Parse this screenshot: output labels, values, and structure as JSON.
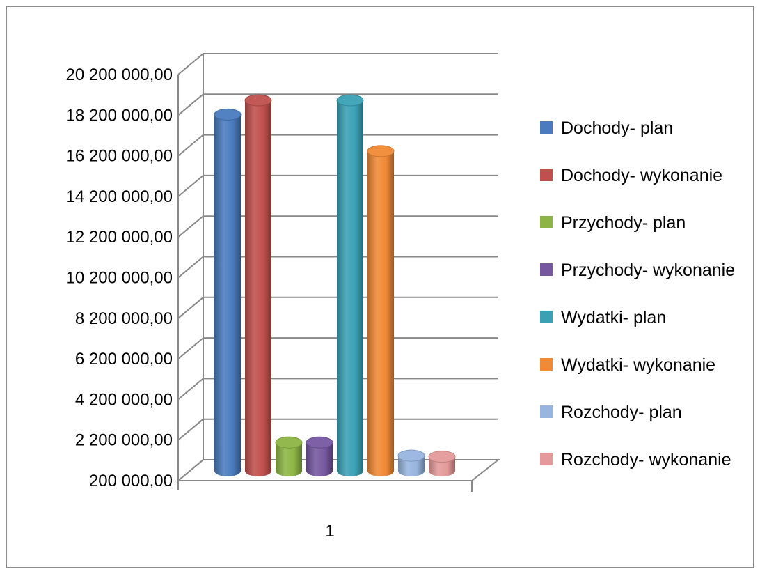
{
  "chart_data": {
    "type": "bar",
    "categories": [
      "1"
    ],
    "ylim": [
      200000,
      20200000
    ],
    "yticks": [
      "200 000,00",
      "2 200 000,00",
      "4 200 000,00",
      "6 200 000,00",
      "8 200 000,00",
      "10 200 000,00",
      "12 200 000,00",
      "14 200 000,00",
      "16 200 000,00",
      "18 200 000,00",
      "20 200 000,00"
    ],
    "ytick_values": [
      200000,
      2200000,
      4200000,
      6200000,
      8200000,
      10200000,
      12200000,
      14200000,
      16200000,
      18200000,
      20200000
    ],
    "grid": true,
    "legend_position": "right",
    "series": [
      {
        "name": "Dochody- plan",
        "values": [
          17750000
        ],
        "color": "#4a7bbf"
      },
      {
        "name": "Dochody- wykonanie",
        "values": [
          18450000
        ],
        "color": "#c0504d"
      },
      {
        "name": "Przychody- plan",
        "values": [
          1600000
        ],
        "color": "#8db545"
      },
      {
        "name": "Przychody- wykonanie",
        "values": [
          1600000
        ],
        "color": "#7658a0"
      },
      {
        "name": "Wydatki- plan",
        "values": [
          18450000
        ],
        "color": "#3aa1b5"
      },
      {
        "name": "Wydatki- wykonanie",
        "values": [
          15950000
        ],
        "color": "#f08a35"
      },
      {
        "name": "Rozchody- plan",
        "values": [
          950000
        ],
        "color": "#98b5df"
      },
      {
        "name": "Rozchody- wykonanie",
        "values": [
          900000
        ],
        "color": "#e49a9a"
      }
    ]
  }
}
